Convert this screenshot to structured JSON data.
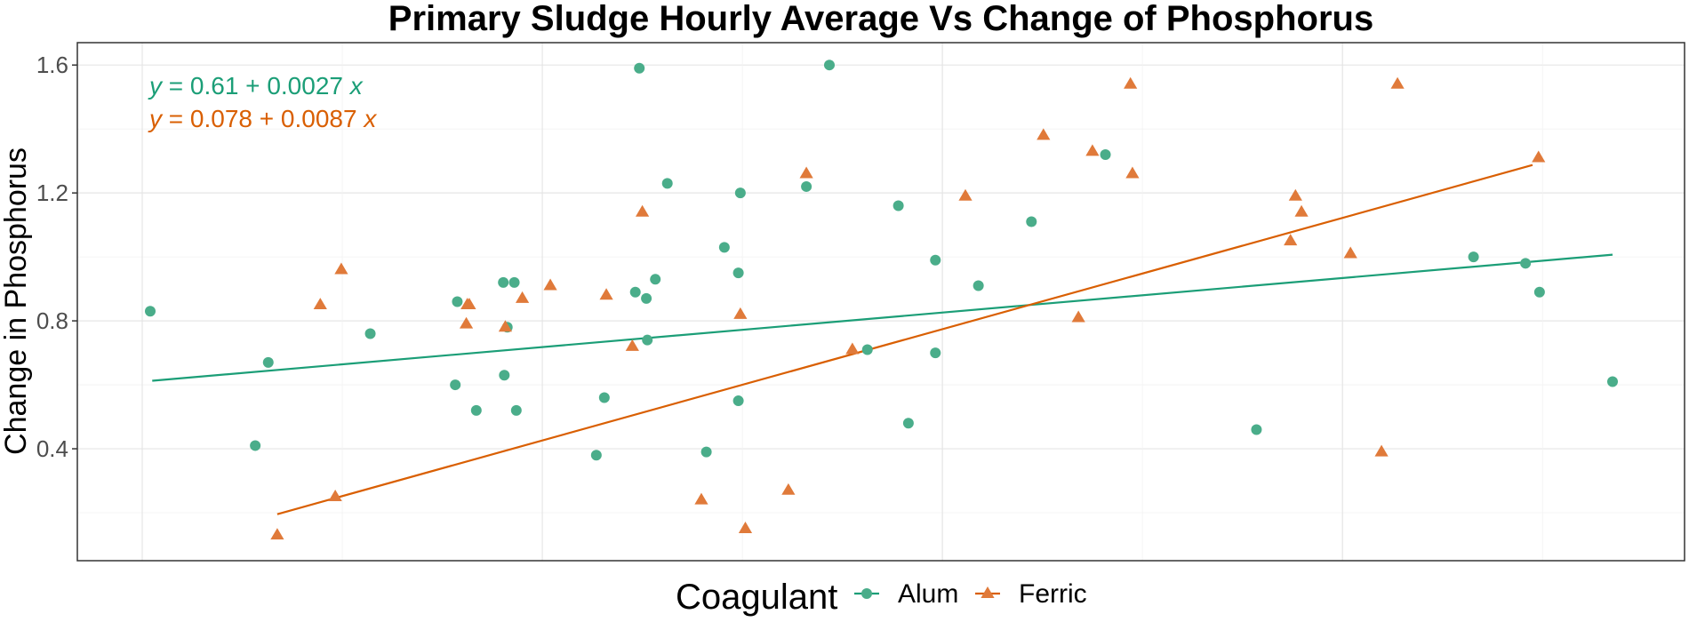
{
  "chart_data": {
    "type": "scatter",
    "title": "Primary Sludge Hourly Average Vs Change of Phosphorus",
    "xlabel": "",
    "ylabel": "Change in Phosphorus",
    "legend": {
      "title": "Coagulant",
      "position": "bottom",
      "entries": [
        "Alum",
        "Ferric"
      ]
    },
    "grid": true,
    "x_tick_labels": [],
    "xlim": [
      0,
      147
    ],
    "ylim": [
      0.05,
      1.67
    ],
    "y_ticks": [
      0.4,
      0.8,
      1.2,
      1.6
    ],
    "y_tick_labels": [
      "0.4",
      "0.8",
      "1.2",
      "1.6"
    ],
    "colors": {
      "Alum": "#1b9e77",
      "Ferric": "#d95f02",
      "Alum_point": "#4aad8a",
      "Ferric_point": "#e07a3a"
    },
    "series": [
      {
        "name": "Alum",
        "marker": "circle",
        "equation_text": {
          "lhs": "y",
          "rhs": " = 0.61 + 0.0027 ",
          "var": "x"
        },
        "fit": {
          "intercept": 0.61,
          "slope": 0.0027,
          "x_range": [
            1,
            147
          ]
        },
        "points": [
          [
            0.8,
            0.83
          ],
          [
            12.6,
            0.67
          ],
          [
            11.3,
            0.41
          ],
          [
            22.8,
            0.76
          ],
          [
            31.3,
            0.6
          ],
          [
            31.5,
            0.86
          ],
          [
            33.4,
            0.52
          ],
          [
            36.1,
            0.92
          ],
          [
            36.2,
            0.63
          ],
          [
            36.5,
            0.78
          ],
          [
            37.2,
            0.92
          ],
          [
            37.4,
            0.52
          ],
          [
            45.4,
            0.38
          ],
          [
            46.2,
            0.56
          ],
          [
            49.3,
            0.89
          ],
          [
            49.7,
            1.59
          ],
          [
            50.4,
            0.87
          ],
          [
            50.5,
            0.74
          ],
          [
            51.3,
            0.93
          ],
          [
            52.5,
            1.23
          ],
          [
            56.4,
            0.39
          ],
          [
            58.2,
            1.03
          ],
          [
            59.6,
            0.95
          ],
          [
            59.6,
            0.55
          ],
          [
            59.8,
            1.2
          ],
          [
            66.4,
            1.22
          ],
          [
            68.7,
            1.6
          ],
          [
            72.5,
            0.71
          ],
          [
            75.6,
            1.16
          ],
          [
            76.6,
            0.48
          ],
          [
            79.3,
            0.7
          ],
          [
            79.3,
            0.99
          ],
          [
            83.6,
            0.91
          ],
          [
            88.9,
            1.11
          ],
          [
            96.3,
            1.32
          ],
          [
            111.4,
            0.46
          ],
          [
            133.1,
            1.0
          ],
          [
            138.3,
            0.98
          ],
          [
            139.7,
            0.89
          ],
          [
            147.0,
            0.61
          ]
        ]
      },
      {
        "name": "Ferric",
        "marker": "triangle",
        "equation_text": {
          "lhs": "y",
          "rhs": " = 0.078 + 0.0087 ",
          "var": "x"
        },
        "fit": {
          "intercept": 0.078,
          "slope": 0.0087,
          "x_range": [
            13.5,
            139
          ]
        },
        "points": [
          [
            13.5,
            0.13
          ],
          [
            17.8,
            0.85
          ],
          [
            19.3,
            0.25
          ],
          [
            19.9,
            0.96
          ],
          [
            32.4,
            0.79
          ],
          [
            32.5,
            0.85
          ],
          [
            32.7,
            0.85
          ],
          [
            36.3,
            0.78
          ],
          [
            38.0,
            0.87
          ],
          [
            40.8,
            0.91
          ],
          [
            46.4,
            0.88
          ],
          [
            49.0,
            0.72
          ],
          [
            50.0,
            1.14
          ],
          [
            55.9,
            0.24
          ],
          [
            59.8,
            0.82
          ],
          [
            60.3,
            0.15
          ],
          [
            64.6,
            0.27
          ],
          [
            66.4,
            1.26
          ],
          [
            71.0,
            0.71
          ],
          [
            82.3,
            1.19
          ],
          [
            90.1,
            1.38
          ],
          [
            93.6,
            0.81
          ],
          [
            95.0,
            1.33
          ],
          [
            98.8,
            1.54
          ],
          [
            99.0,
            1.26
          ],
          [
            114.8,
            1.05
          ],
          [
            115.3,
            1.19
          ],
          [
            115.9,
            1.14
          ],
          [
            120.8,
            1.01
          ],
          [
            123.9,
            0.39
          ],
          [
            125.5,
            1.54
          ],
          [
            139.6,
            1.31
          ]
        ]
      }
    ]
  }
}
